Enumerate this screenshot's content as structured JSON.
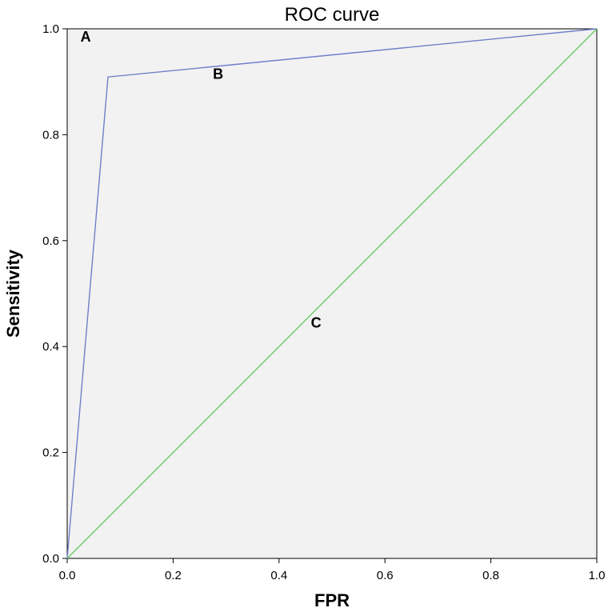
{
  "chart_data": {
    "type": "line",
    "title": "ROC curve",
    "xlabel": "FPR",
    "ylabel": "Sensitivity",
    "xlim": [
      0.0,
      1.0
    ],
    "ylim": [
      0.0,
      1.0
    ],
    "x_ticks": [
      "0.0",
      "0.2",
      "0.4",
      "0.6",
      "0.8",
      "1.0"
    ],
    "y_ticks": [
      "0.0",
      "0.2",
      "0.4",
      "0.6",
      "0.8",
      "1.0"
    ],
    "grid": false,
    "legend": "none",
    "plot_background": "#f2f2f2",
    "series": [
      {
        "color": "#6f7fc9",
        "x": [
          0.0,
          0.077,
          1.0
        ],
        "y": [
          0.0,
          0.909,
          1.0
        ]
      },
      {
        "color": "#66cc66",
        "x": [
          0.0,
          1.0
        ],
        "y": [
          0.0,
          1.0
        ]
      }
    ],
    "annotations": [
      {
        "text": "A",
        "x": 0.035,
        "y": 0.985
      },
      {
        "text": "B",
        "x": 0.285,
        "y": 0.915
      },
      {
        "text": "C",
        "x": 0.47,
        "y": 0.445
      }
    ]
  }
}
